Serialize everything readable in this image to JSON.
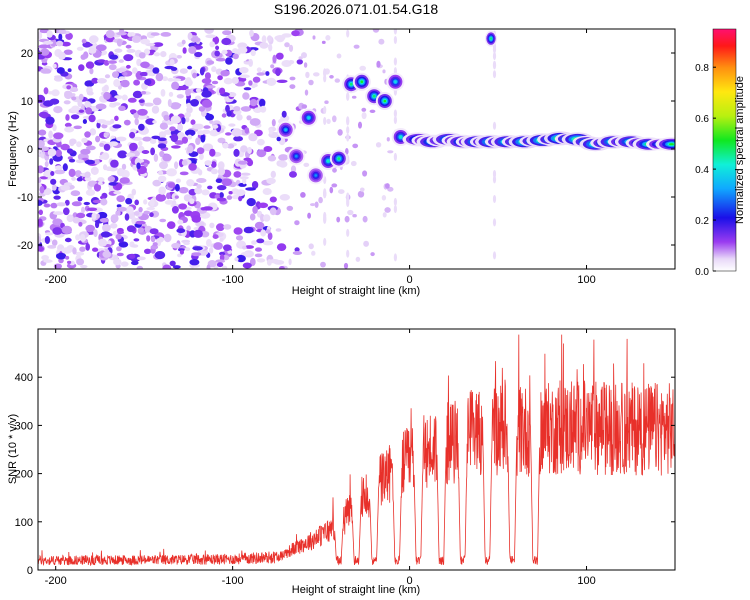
{
  "chart_data": [
    {
      "type": "heatmap",
      "title": "S196.2026.071.01.54.G18",
      "xlabel": "Height of straight line (km)",
      "ylabel": "Frequency (Hz)",
      "xlim": [
        -210,
        150
      ],
      "ylim": [
        -25,
        25
      ],
      "xticks": [
        -200,
        -100,
        0,
        100
      ],
      "xtick_labels": [
        "-200",
        "-100",
        "0",
        "100"
      ],
      "yticks": [
        20,
        10,
        0,
        -10,
        -20
      ],
      "ytick_labels": [
        "20",
        "10",
        "0",
        "-10",
        "-20"
      ],
      "colorbar": {
        "label": "Normalized spectral amplitude",
        "range": [
          0,
          0.95
        ],
        "ticks": [
          0.0,
          0.2,
          0.4,
          0.6,
          0.8
        ],
        "tick_labels": [
          "0.0",
          "0.2",
          "0.4",
          "0.6",
          "0.8"
        ]
      },
      "noise_region_km": [
        -210,
        -70
      ],
      "ridge": {
        "description": "frequency peak of dominant spectral component vs height",
        "points": [
          {
            "x": -70,
            "y": 4,
            "amp": 0.35
          },
          {
            "x": -64,
            "y": -1.5,
            "amp": 0.3
          },
          {
            "x": -57,
            "y": 6.5,
            "amp": 0.4
          },
          {
            "x": -53,
            "y": -5.5,
            "amp": 0.3
          },
          {
            "x": -46,
            "y": -2.5,
            "amp": 0.45
          },
          {
            "x": -40,
            "y": -2,
            "amp": 0.5
          },
          {
            "x": -33,
            "y": 13.5,
            "amp": 0.5
          },
          {
            "x": -27,
            "y": 14,
            "amp": 0.55
          },
          {
            "x": -20,
            "y": 11,
            "amp": 0.5
          },
          {
            "x": -14,
            "y": 10,
            "amp": 0.55
          },
          {
            "x": -8,
            "y": 14,
            "amp": 0.4
          },
          {
            "x": -5,
            "y": 2.5,
            "amp": 0.45
          },
          {
            "x": 5,
            "y": 2,
            "amp": 0.55
          },
          {
            "x": 13,
            "y": 1.5,
            "amp": 0.6
          },
          {
            "x": 22,
            "y": 2,
            "amp": 0.65
          },
          {
            "x": 30,
            "y": 1.5,
            "amp": 0.6
          },
          {
            "x": 38,
            "y": 1.5,
            "amp": 0.7
          },
          {
            "x": 46,
            "y": 1.5,
            "amp": 0.75
          },
          {
            "x": 55,
            "y": 1.5,
            "amp": 0.7
          },
          {
            "x": 65,
            "y": 1.5,
            "amp": 0.8
          },
          {
            "x": 75,
            "y": 1.8,
            "amp": 0.8
          },
          {
            "x": 85,
            "y": 2.2,
            "amp": 0.85
          },
          {
            "x": 95,
            "y": 2,
            "amp": 0.8
          },
          {
            "x": 105,
            "y": 1,
            "amp": 0.75
          },
          {
            "x": 115,
            "y": 1.5,
            "amp": 0.7
          },
          {
            "x": 125,
            "y": 1.5,
            "amp": 0.65
          },
          {
            "x": 135,
            "y": 1,
            "amp": 0.6
          },
          {
            "x": 148,
            "y": 1,
            "amp": 0.55
          }
        ]
      },
      "isolated_blob": {
        "x": 46,
        "y": 23,
        "amp": 0.5
      }
    },
    {
      "type": "line",
      "xlabel": "Height of straight line (km)",
      "ylabel": "SNR (10 * v/v)",
      "xlim": [
        -210,
        150
      ],
      "ylim": [
        0,
        500
      ],
      "xticks": [
        -200,
        -100,
        0,
        100
      ],
      "xtick_labels": [
        "-200",
        "-100",
        "0",
        "100"
      ],
      "yticks": [
        0,
        100,
        200,
        300,
        400
      ],
      "ytick_labels": [
        "0",
        "100",
        "200",
        "300",
        "400"
      ],
      "series": [
        {
          "name": "SNR",
          "color": "#e8302a",
          "envelope": {
            "x": [
              -210,
              -150,
              -100,
              -75,
              -65,
              -55,
              -45,
              -35,
              -25,
              -15,
              -5,
              5,
              15,
              25,
              35,
              45,
              55,
              65,
              80,
              100,
              120,
              150
            ],
            "y": [
              22,
              23,
              25,
              30,
              55,
              75,
              100,
              140,
              185,
              230,
              260,
              285,
              310,
              320,
              350,
              355,
              355,
              350,
              355,
              360,
              355,
              355
            ]
          },
          "dropouts_km": [
            -40,
            -30,
            -20,
            -7,
            5,
            18,
            30,
            44,
            58,
            71
          ]
        }
      ]
    }
  ]
}
